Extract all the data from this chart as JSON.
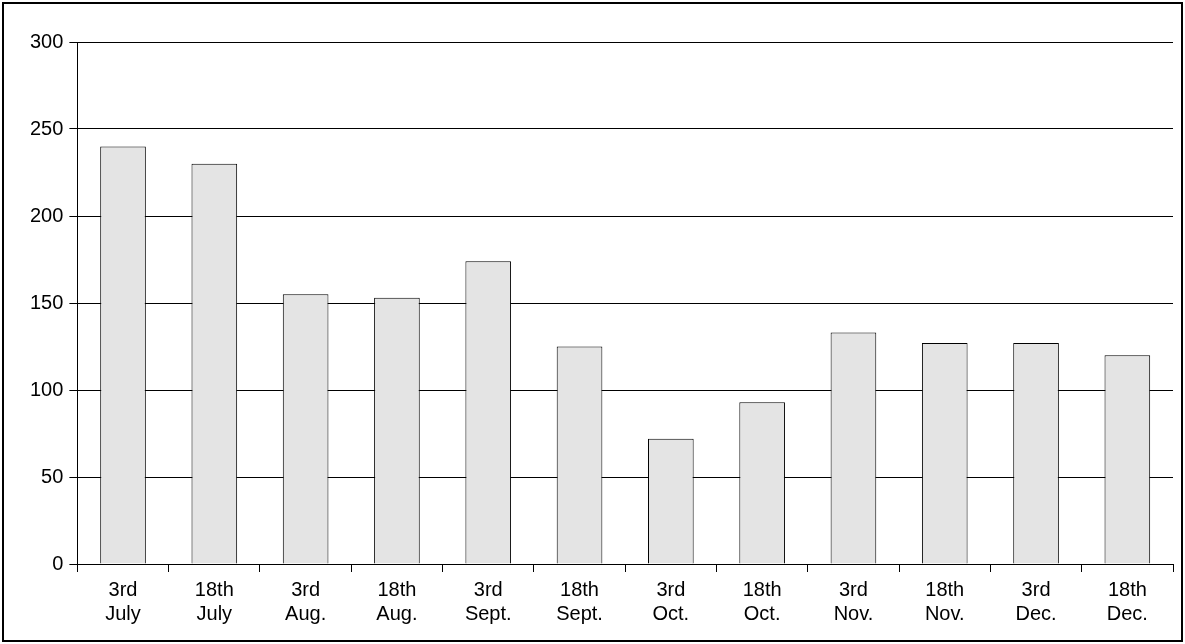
{
  "chart_data": {
    "type": "bar",
    "categories": [
      "3rd July",
      "18th July",
      "3rd Aug.",
      "18th Aug.",
      "3rd Sept.",
      "18th Sept.",
      "3rd Oct.",
      "18th Oct.",
      "3rd Nov.",
      "18th Nov.",
      "3rd Dec.",
      "18th Dec."
    ],
    "values": [
      240,
      230,
      155,
      153,
      174,
      125,
      72,
      93,
      133,
      127,
      127,
      120
    ],
    "color": "#e4e4e4",
    "ylim": [
      0,
      300
    ],
    "yticks": [
      0,
      50,
      100,
      150,
      200,
      250,
      300
    ],
    "grid": "y",
    "legend": false
  }
}
